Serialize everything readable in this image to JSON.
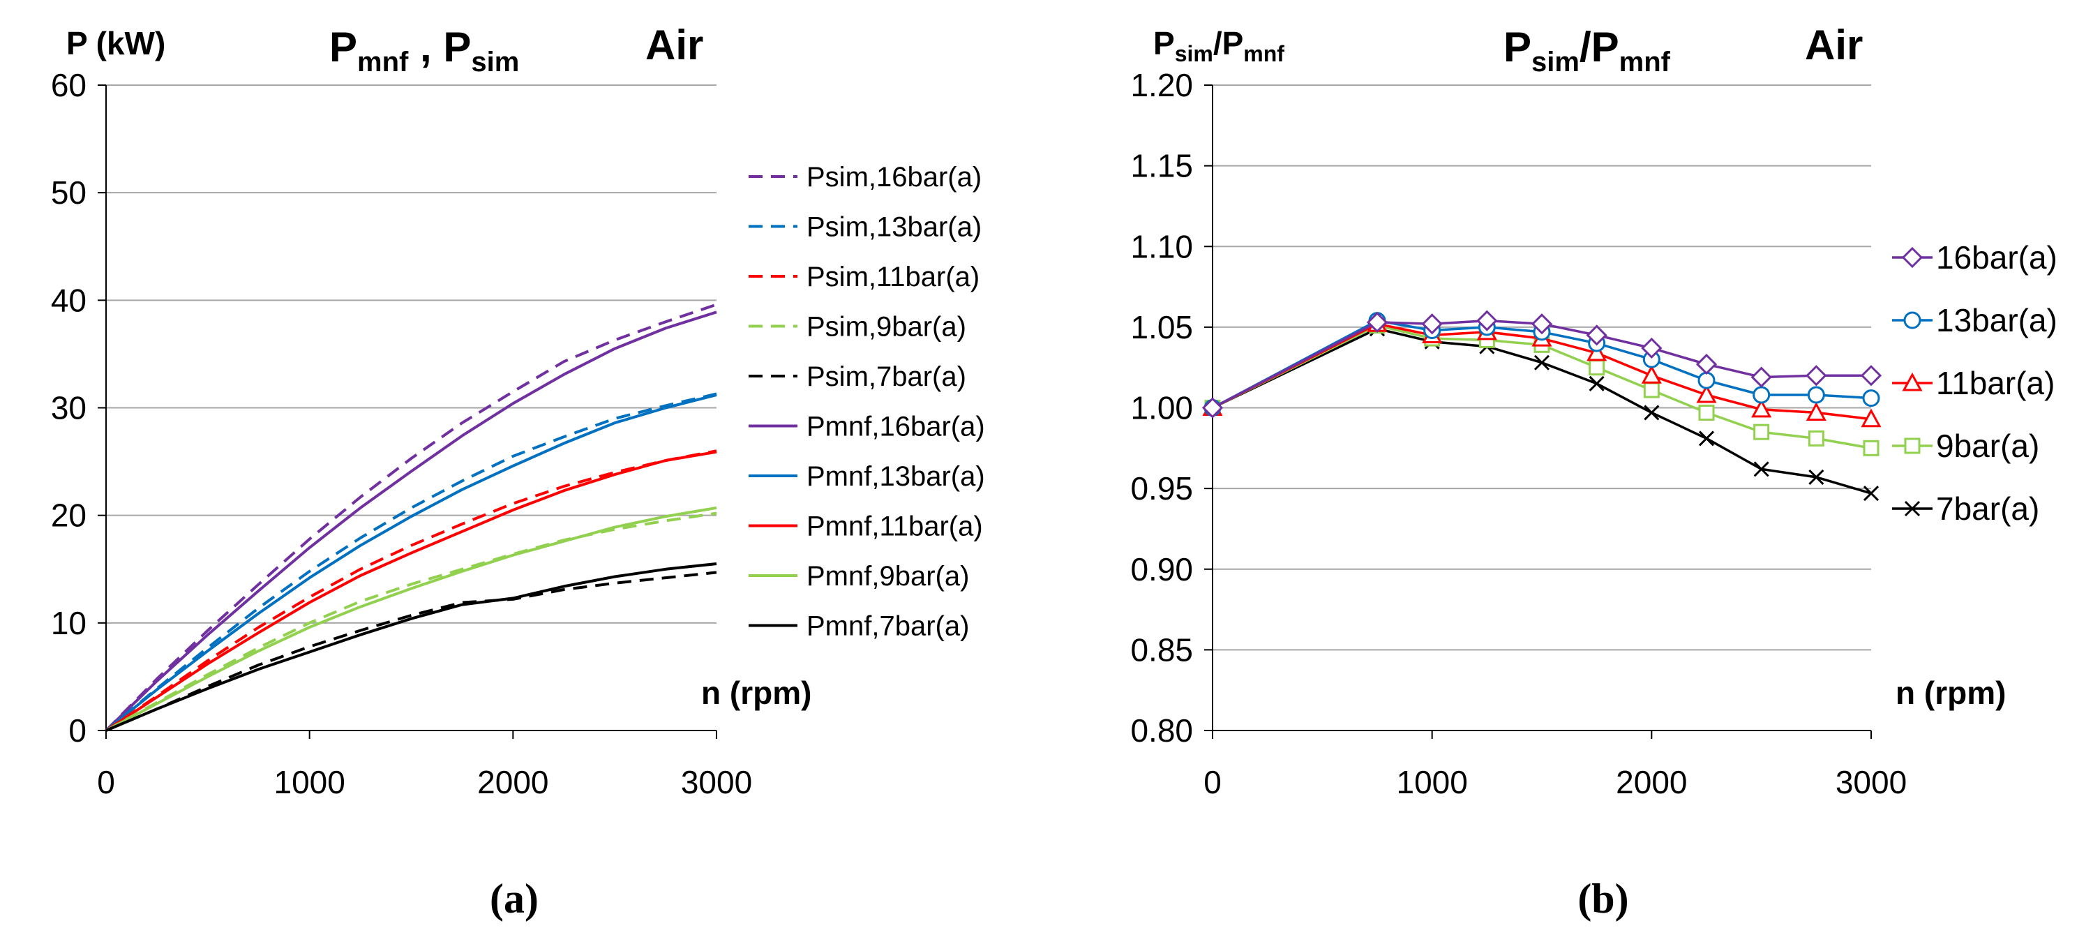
{
  "chart_data": [
    {
      "type": "line",
      "panel_label": "(a)",
      "ylabel": "P (kW)",
      "title_parts": [
        "P",
        "mnf",
        " , P",
        "sim"
      ],
      "medium": "Air",
      "xlabel": "n (rpm)",
      "xlim": [
        0,
        3000
      ],
      "ylim": [
        0,
        60
      ],
      "x_ticks": [
        "0",
        "1000",
        "2000",
        "3000"
      ],
      "y_ticks": [
        "0",
        "10",
        "20",
        "30",
        "40",
        "50",
        "60"
      ],
      "x": [
        0,
        250,
        500,
        750,
        1000,
        1250,
        1500,
        1750,
        2000,
        2250,
        2500,
        2750,
        3000
      ],
      "series": [
        {
          "name": "Psim,16bar(a)",
          "style": "dashed",
          "color": "#7030A0",
          "values": [
            0,
            4.8,
            9.3,
            13.6,
            17.8,
            21.7,
            25.3,
            28.6,
            31.5,
            34.3,
            36.3,
            38.0,
            39.6
          ]
        },
        {
          "name": "Psim,13bar(a)",
          "style": "dashed",
          "color": "#0070C0",
          "values": [
            0,
            3.9,
            7.7,
            11.4,
            14.8,
            17.9,
            20.7,
            23.2,
            25.5,
            27.3,
            29.0,
            30.2,
            31.3
          ]
        },
        {
          "name": "Psim,11bar(a)",
          "style": "dashed",
          "color": "#FF0000",
          "values": [
            0,
            3.2,
            6.5,
            9.6,
            12.4,
            15.0,
            17.2,
            19.2,
            21.1,
            22.7,
            24.0,
            25.1,
            26.0
          ]
        },
        {
          "name": "Psim,9bar(a)",
          "style": "dashed",
          "color": "#92D050",
          "values": [
            0,
            2.6,
            5.2,
            7.7,
            10.0,
            12.0,
            13.6,
            15.0,
            16.4,
            17.7,
            18.7,
            19.5,
            20.2
          ]
        },
        {
          "name": "Psim,7bar(a)",
          "style": "dashed",
          "color": "#000000",
          "values": [
            0,
            2.0,
            4.1,
            6.1,
            7.8,
            9.3,
            10.7,
            11.9,
            12.2,
            13.1,
            13.7,
            14.2,
            14.7
          ]
        },
        {
          "name": "Pmnf,16bar(a)",
          "style": "solid",
          "color": "#7030A0",
          "values": [
            0,
            4.6,
            8.9,
            13.0,
            17.0,
            20.7,
            24.1,
            27.4,
            30.4,
            33.1,
            35.5,
            37.4,
            38.9
          ]
        },
        {
          "name": "Pmnf,13bar(a)",
          "style": "solid",
          "color": "#0070C0",
          "values": [
            0,
            3.8,
            7.4,
            10.9,
            14.2,
            17.2,
            19.9,
            22.4,
            24.6,
            26.7,
            28.6,
            30.0,
            31.2
          ]
        },
        {
          "name": "Pmnf,11bar(a)",
          "style": "solid",
          "color": "#FF0000",
          "values": [
            0,
            3.1,
            6.2,
            9.1,
            11.9,
            14.4,
            16.5,
            18.5,
            20.5,
            22.3,
            23.8,
            25.1,
            25.9
          ]
        },
        {
          "name": "Pmnf,9bar(a)",
          "style": "solid",
          "color": "#92D050",
          "values": [
            0,
            2.5,
            5.0,
            7.4,
            9.6,
            11.5,
            13.2,
            14.8,
            16.3,
            17.6,
            18.9,
            19.9,
            20.7
          ]
        },
        {
          "name": "Pmnf,7bar(a)",
          "style": "solid",
          "color": "#000000",
          "values": [
            0,
            2.0,
            3.9,
            5.7,
            7.3,
            8.9,
            10.4,
            11.7,
            12.3,
            13.4,
            14.3,
            15.0,
            15.5
          ]
        }
      ]
    },
    {
      "type": "line",
      "panel_label": "(b)",
      "ylabel_parts": [
        "P",
        "sim",
        "/P",
        "mnf"
      ],
      "title_parts": [
        "P",
        "sim",
        "/P",
        "mnf"
      ],
      "medium": "Air",
      "xlabel": "n (rpm)",
      "xlim": [
        0,
        3000
      ],
      "ylim": [
        0.8,
        1.2
      ],
      "x_ticks": [
        "0",
        "1000",
        "2000",
        "3000"
      ],
      "y_ticks": [
        "0.80",
        "0.85",
        "0.90",
        "0.95",
        "1.00",
        "1.05",
        "1.10",
        "1.15",
        "1.20"
      ],
      "x": [
        0,
        750,
        1000,
        1250,
        1500,
        1750,
        2000,
        2250,
        2500,
        2750,
        3000
      ],
      "series": [
        {
          "name": "16bar(a)",
          "marker": "diamond",
          "color": "#7030A0",
          "values": [
            1.0,
            1.053,
            1.052,
            1.054,
            1.052,
            1.045,
            1.037,
            1.027,
            1.019,
            1.02,
            1.02
          ]
        },
        {
          "name": "13bar(a)",
          "marker": "circle",
          "color": "#0070C0",
          "values": [
            1.0,
            1.054,
            1.048,
            1.05,
            1.047,
            1.04,
            1.03,
            1.017,
            1.008,
            1.008,
            1.006
          ]
        },
        {
          "name": "11bar(a)",
          "marker": "triangle",
          "color": "#FF0000",
          "values": [
            1.0,
            1.052,
            1.045,
            1.047,
            1.043,
            1.034,
            1.02,
            1.008,
            0.999,
            0.997,
            0.993
          ]
        },
        {
          "name": "9bar(a)",
          "marker": "square",
          "color": "#92D050",
          "values": [
            1.0,
            1.051,
            1.043,
            1.042,
            1.039,
            1.025,
            1.011,
            0.997,
            0.985,
            0.981,
            0.975
          ]
        },
        {
          "name": "7bar(a)",
          "marker": "x",
          "color": "#000000",
          "values": [
            1.0,
            1.049,
            1.041,
            1.038,
            1.028,
            1.015,
            0.997,
            0.981,
            0.962,
            0.957,
            0.947
          ]
        }
      ]
    }
  ]
}
